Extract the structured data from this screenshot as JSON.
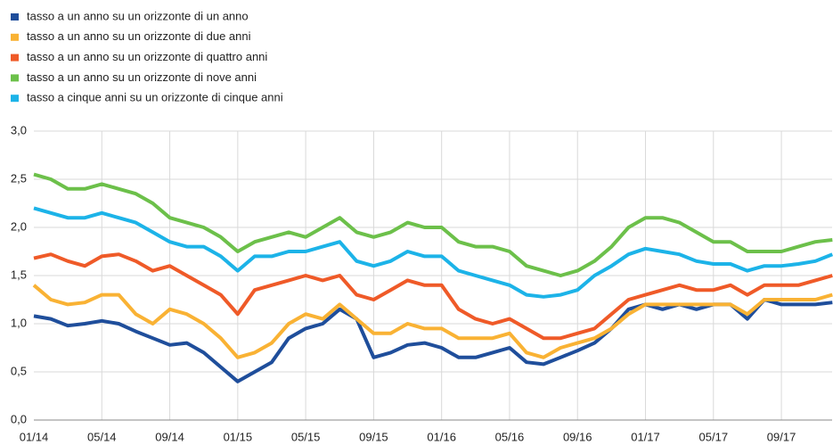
{
  "chart_data": {
    "type": "line",
    "categories": [
      "01/14",
      null,
      null,
      null,
      "05/14",
      null,
      null,
      null,
      "09/14",
      null,
      null,
      null,
      "01/15",
      null,
      null,
      null,
      "05/15",
      null,
      null,
      null,
      "09/15",
      null,
      null,
      null,
      "01/16",
      null,
      null,
      null,
      "05/16",
      null,
      null,
      null,
      "09/16",
      null,
      null,
      null,
      "01/17",
      null,
      null,
      null,
      "05/17",
      null,
      null,
      null,
      "09/17",
      null,
      null,
      null
    ],
    "series": [
      {
        "name": "tasso a un anno su un orizzonte di un anno",
        "color": "#1f4e9b",
        "values": [
          1.08,
          1.05,
          0.98,
          1.0,
          1.03,
          1.0,
          0.92,
          0.85,
          0.78,
          0.8,
          0.7,
          0.55,
          0.4,
          0.5,
          0.6,
          0.85,
          0.95,
          1.0,
          1.15,
          1.05,
          0.65,
          0.7,
          0.78,
          0.8,
          0.75,
          0.65,
          0.65,
          0.7,
          0.75,
          0.6,
          0.58,
          0.65,
          0.72,
          0.8,
          0.95,
          1.15,
          1.2,
          1.15,
          1.2,
          1.15,
          1.2,
          1.2,
          1.05,
          1.25,
          1.2,
          1.2,
          1.2,
          1.22
        ]
      },
      {
        "name": "tasso a un anno su un orizzonte di due anni",
        "color": "#f9b234",
        "values": [
          1.4,
          1.25,
          1.2,
          1.22,
          1.3,
          1.3,
          1.1,
          1.0,
          1.15,
          1.1,
          1.0,
          0.85,
          0.65,
          0.7,
          0.8,
          1.0,
          1.1,
          1.05,
          1.2,
          1.05,
          0.9,
          0.9,
          1.0,
          0.95,
          0.95,
          0.85,
          0.85,
          0.85,
          0.9,
          0.7,
          0.65,
          0.75,
          0.8,
          0.85,
          0.95,
          1.1,
          1.2,
          1.2,
          1.2,
          1.2,
          1.2,
          1.2,
          1.1,
          1.25,
          1.25,
          1.25,
          1.25,
          1.3
        ]
      },
      {
        "name": "tasso a un anno su un orizzonte di quattro anni",
        "color": "#ef5a28",
        "values": [
          1.68,
          1.72,
          1.65,
          1.6,
          1.7,
          1.72,
          1.65,
          1.55,
          1.6,
          1.5,
          1.4,
          1.3,
          1.1,
          1.35,
          1.4,
          1.45,
          1.5,
          1.45,
          1.5,
          1.3,
          1.25,
          1.35,
          1.45,
          1.4,
          1.4,
          1.15,
          1.05,
          1.0,
          1.05,
          0.95,
          0.85,
          0.85,
          0.9,
          0.95,
          1.1,
          1.25,
          1.3,
          1.35,
          1.4,
          1.35,
          1.35,
          1.4,
          1.3,
          1.4,
          1.4,
          1.4,
          1.45,
          1.5
        ]
      },
      {
        "name": "tasso a un anno su un orizzonte di nove anni",
        "color": "#6cc04a",
        "values": [
          2.55,
          2.5,
          2.4,
          2.4,
          2.45,
          2.4,
          2.35,
          2.25,
          2.1,
          2.05,
          2.0,
          1.9,
          1.75,
          1.85,
          1.9,
          1.95,
          1.9,
          2.0,
          2.1,
          1.95,
          1.9,
          1.95,
          2.05,
          2.0,
          2.0,
          1.85,
          1.8,
          1.8,
          1.75,
          1.6,
          1.55,
          1.5,
          1.55,
          1.65,
          1.8,
          2.0,
          2.1,
          2.1,
          2.05,
          1.95,
          1.85,
          1.85,
          1.75,
          1.75,
          1.75,
          1.8,
          1.85,
          1.87
        ]
      },
      {
        "name": "tasso a cinque anni su un orizzonte di cinque anni",
        "color": "#1cb3e8",
        "values": [
          2.2,
          2.15,
          2.1,
          2.1,
          2.15,
          2.1,
          2.05,
          1.95,
          1.85,
          1.8,
          1.8,
          1.7,
          1.55,
          1.7,
          1.7,
          1.75,
          1.75,
          1.8,
          1.85,
          1.65,
          1.6,
          1.65,
          1.75,
          1.7,
          1.7,
          1.55,
          1.5,
          1.45,
          1.4,
          1.3,
          1.28,
          1.3,
          1.35,
          1.5,
          1.6,
          1.72,
          1.78,
          1.75,
          1.72,
          1.65,
          1.62,
          1.62,
          1.55,
          1.6,
          1.6,
          1.62,
          1.65,
          1.72
        ]
      }
    ],
    "ylim": [
      0,
      3
    ],
    "yticks": [
      {
        "value": 0,
        "label": "0,0"
      },
      {
        "value": 0.5,
        "label": "0,5"
      },
      {
        "value": 1,
        "label": "1,0"
      },
      {
        "value": 1.5,
        "label": "1,5"
      },
      {
        "value": 2,
        "label": "2,0"
      },
      {
        "value": 2.5,
        "label": "2,5"
      },
      {
        "value": 3,
        "label": "3,0"
      }
    ],
    "grid": true,
    "legend": "top-left"
  }
}
